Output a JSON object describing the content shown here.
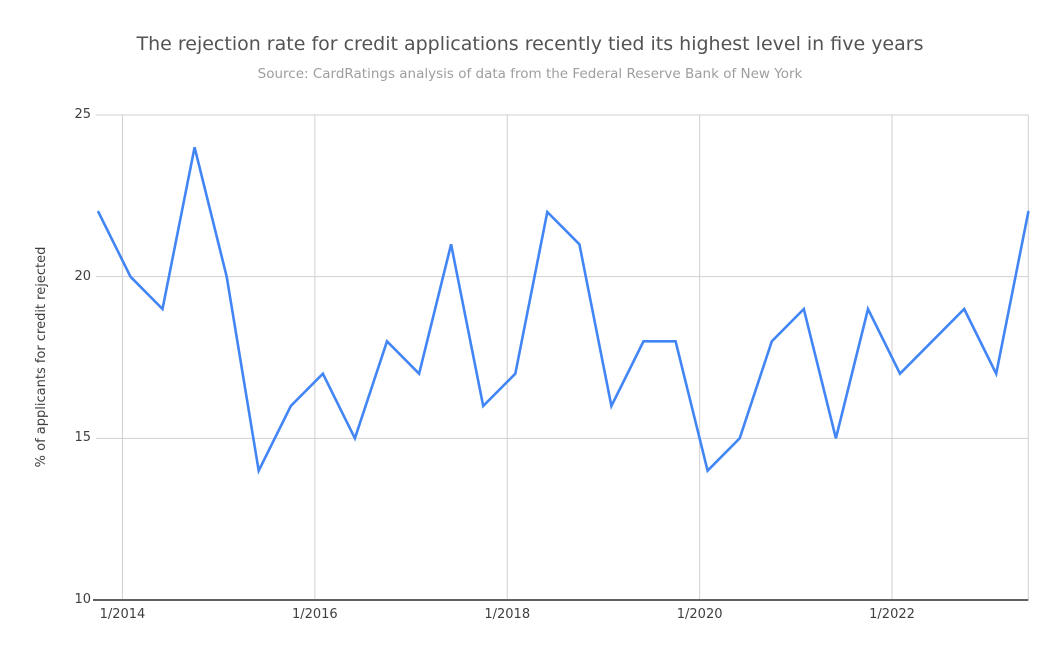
{
  "chart_data": {
    "type": "line",
    "title": "The rejection rate for credit applications recently tied its highest level in five years",
    "subtitle": "Source: CardRatings analysis of data from the Federal Reserve Bank of New York",
    "ylabel": "% of applicants for credit rejected",
    "ylim": [
      10,
      25
    ],
    "y_ticks": [
      10,
      15,
      20,
      25
    ],
    "x_tick_labels": [
      "1/2014",
      "1/2016",
      "1/2018",
      "1/2020",
      "1/2022"
    ],
    "grid": "on",
    "legend": "none",
    "series_name": "% of applicants for credit rejected",
    "x": [
      "10/2013",
      "2/2014",
      "6/2014",
      "10/2014",
      "2/2015",
      "6/2015",
      "10/2015",
      "2/2016",
      "6/2016",
      "10/2016",
      "2/2017",
      "6/2017",
      "10/2017",
      "2/2018",
      "6/2018",
      "10/2018",
      "2/2019",
      "6/2019",
      "10/2019",
      "2/2020",
      "6/2020",
      "10/2020",
      "2/2021",
      "6/2021",
      "10/2021",
      "2/2022",
      "6/2022",
      "10/2022",
      "2/2023",
      "6/2023"
    ],
    "values": [
      22,
      20,
      19,
      24,
      20,
      14,
      16,
      17,
      15,
      18,
      17,
      21,
      16,
      17,
      22,
      21,
      16,
      18,
      18,
      14,
      15,
      18,
      19,
      15,
      19,
      17,
      18,
      19,
      17,
      22
    ],
    "colors": {
      "line": "#4285f4",
      "grid": "#d0d0d0",
      "axis": "#616161",
      "title": "#535353",
      "subtitle": "#9e9e9e",
      "tick": "#3f3f3f",
      "background": "#ffffff"
    }
  }
}
